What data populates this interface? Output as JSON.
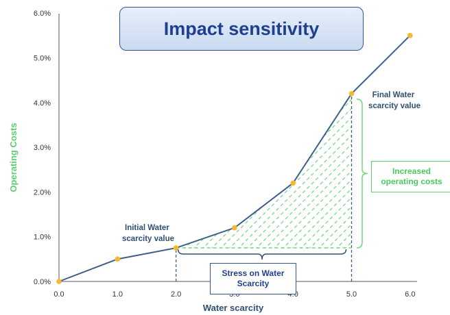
{
  "chart_data": {
    "type": "line",
    "title": "Impact sensitivity",
    "xlabel": "Water scarcity",
    "ylabel": "Operating Costs",
    "xlim": [
      0,
      6
    ],
    "ylim": [
      0,
      6
    ],
    "x_ticks": [
      "0.0",
      "1.0",
      "2.0",
      "3.0",
      "4.0",
      "5.0",
      "6.0"
    ],
    "x_tick_values": [
      0,
      1,
      2,
      3,
      4,
      5,
      6
    ],
    "y_ticks": [
      "0.0%",
      "1.0%",
      "2.0%",
      "3.0%",
      "4.0%",
      "5.0%",
      "6.0%"
    ],
    "y_tick_values": [
      0,
      1,
      2,
      3,
      4,
      5,
      6
    ],
    "y_unit": "%",
    "grid": false,
    "series": [
      {
        "x": [
          0,
          1,
          2,
          3,
          4,
          5,
          6
        ],
        "values": [
          0.0,
          0.5,
          0.75,
          1.2,
          2.2,
          4.2,
          5.5
        ]
      }
    ],
    "annotations": {
      "initial_label": [
        "Initial Water",
        "scarcity value"
      ],
      "final_label": [
        "Final Water",
        "scarcity value"
      ],
      "stress_label": "Stress on Water Scarcity",
      "increase_label": "Increased operating costs",
      "initial_x": 2,
      "final_x": 5
    },
    "colors": {
      "line": "#3b5f8a",
      "points": "#f5b82e",
      "hatch": "#6fd67d",
      "ylabel": "#5ccf6e",
      "xlabel": "#2f4f73",
      "brace_blue": "#2f4f73",
      "brace_green": "#6fd67d"
    }
  }
}
